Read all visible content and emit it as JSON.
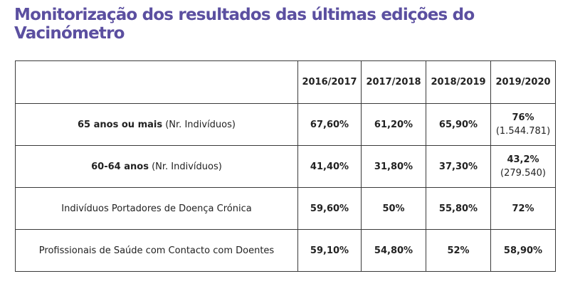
{
  "title": "Monitorização dos resultados das últimas edições do Vacinómetro",
  "table": {
    "headers": [
      "",
      "2016/2017",
      "2017/2018",
      "2018/2019",
      "2019/2020"
    ],
    "rows": [
      {
        "label_bold": "65 anos ou mais",
        "label_rest": " (Nr. Indivíduos)",
        "values": [
          "67,60%",
          "61,20%",
          "65,90%",
          "76%"
        ],
        "last_sub": "(1.544.781)"
      },
      {
        "label_bold": "60-64 anos",
        "label_rest": " (Nr. Indivíduos)",
        "values": [
          "41,40%",
          "31,80%",
          "37,30%",
          "43,2%"
        ],
        "last_sub": "(279.540)"
      },
      {
        "label_bold": "",
        "label_rest": "Indivíduos Portadores de Doença Crónica",
        "values": [
          "59,60%",
          "50%",
          "55,80%",
          "72%"
        ],
        "last_sub": ""
      },
      {
        "label_bold": "",
        "label_rest": "Profissionais de Saúde com Contacto com Doentes",
        "values": [
          "59,10%",
          "54,80%",
          "52%",
          "58,90%"
        ],
        "last_sub": ""
      }
    ]
  }
}
